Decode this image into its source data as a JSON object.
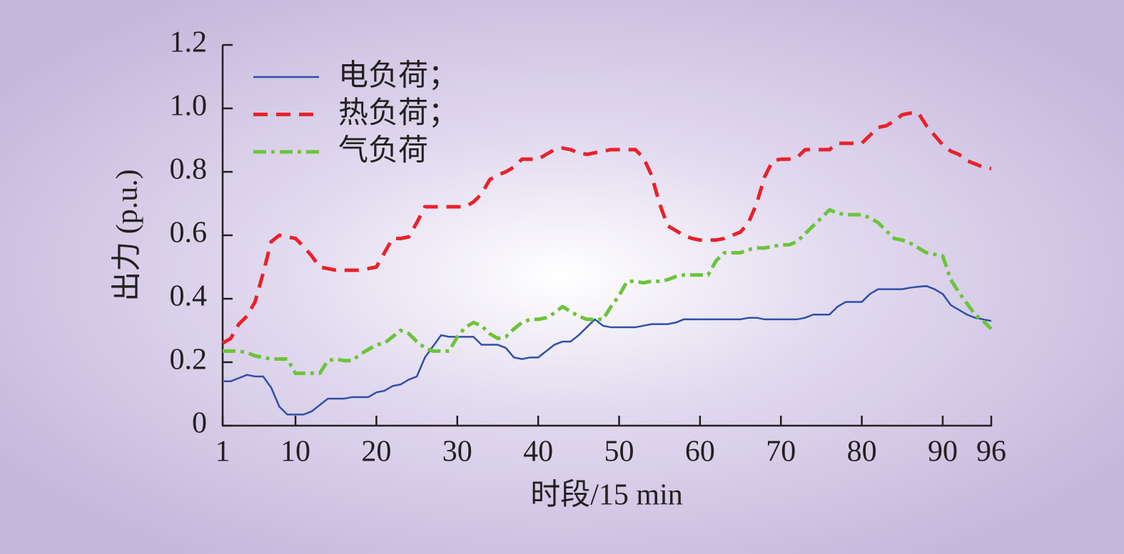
{
  "chart_data": {
    "type": "line",
    "x_label": "时段/15 min",
    "y_label": "出力 (p.u.)",
    "x": [
      1,
      2,
      3,
      4,
      5,
      6,
      7,
      8,
      9,
      10,
      11,
      12,
      13,
      14,
      15,
      16,
      17,
      18,
      19,
      20,
      21,
      22,
      23,
      24,
      25,
      26,
      27,
      28,
      29,
      30,
      31,
      32,
      33,
      34,
      35,
      36,
      37,
      38,
      39,
      40,
      41,
      42,
      43,
      44,
      45,
      46,
      47,
      48,
      49,
      50,
      51,
      52,
      53,
      54,
      55,
      56,
      57,
      58,
      59,
      60,
      61,
      62,
      63,
      64,
      65,
      66,
      67,
      68,
      69,
      70,
      71,
      72,
      73,
      74,
      75,
      76,
      77,
      78,
      79,
      80,
      81,
      82,
      83,
      84,
      85,
      86,
      87,
      88,
      89,
      90,
      91,
      92,
      93,
      94,
      95,
      96
    ],
    "series": [
      {
        "name": "电负荷；",
        "color": "#2f4fa8",
        "dash": "solid",
        "values": [
          0.14,
          0.14,
          0.15,
          0.16,
          0.155,
          0.155,
          0.12,
          0.06,
          0.035,
          0.035,
          0.035,
          0.045,
          0.065,
          0.085,
          0.085,
          0.085,
          0.09,
          0.09,
          0.09,
          0.105,
          0.11,
          0.125,
          0.13,
          0.145,
          0.155,
          0.215,
          0.25,
          0.285,
          0.28,
          0.28,
          0.28,
          0.28,
          0.255,
          0.255,
          0.255,
          0.245,
          0.215,
          0.21,
          0.215,
          0.215,
          0.235,
          0.255,
          0.265,
          0.265,
          0.285,
          0.31,
          0.335,
          0.315,
          0.31,
          0.31,
          0.31,
          0.31,
          0.315,
          0.32,
          0.32,
          0.32,
          0.325,
          0.335,
          0.335,
          0.335,
          0.335,
          0.335,
          0.335,
          0.335,
          0.335,
          0.34,
          0.34,
          0.335,
          0.335,
          0.335,
          0.335,
          0.335,
          0.34,
          0.35,
          0.35,
          0.35,
          0.375,
          0.39,
          0.39,
          0.39,
          0.415,
          0.43,
          0.43,
          0.43,
          0.43,
          0.435,
          0.438,
          0.44,
          0.43,
          0.415,
          0.38,
          0.365,
          0.35,
          0.34,
          0.335,
          0.33
        ]
      },
      {
        "name": "热负荷；",
        "color": "#e8222b",
        "dash": "dashed",
        "values": [
          0.26,
          0.275,
          0.32,
          0.345,
          0.39,
          0.48,
          0.58,
          0.6,
          0.595,
          0.59,
          0.565,
          0.535,
          0.5,
          0.495,
          0.49,
          0.49,
          0.49,
          0.49,
          0.495,
          0.5,
          0.545,
          0.59,
          0.59,
          0.595,
          0.64,
          0.69,
          0.69,
          0.69,
          0.69,
          0.69,
          0.69,
          0.705,
          0.73,
          0.775,
          0.79,
          0.8,
          0.815,
          0.84,
          0.84,
          0.84,
          0.855,
          0.87,
          0.875,
          0.87,
          0.86,
          0.855,
          0.86,
          0.865,
          0.87,
          0.87,
          0.87,
          0.87,
          0.845,
          0.79,
          0.7,
          0.63,
          0.615,
          0.6,
          0.59,
          0.585,
          0.585,
          0.585,
          0.59,
          0.6,
          0.61,
          0.64,
          0.7,
          0.785,
          0.835,
          0.84,
          0.84,
          0.845,
          0.87,
          0.87,
          0.87,
          0.87,
          0.89,
          0.89,
          0.89,
          0.89,
          0.915,
          0.94,
          0.945,
          0.96,
          0.98,
          0.985,
          0.985,
          0.945,
          0.915,
          0.885,
          0.865,
          0.855,
          0.835,
          0.825,
          0.815,
          0.81
        ]
      },
      {
        "name": "气负荷",
        "color": "#6cc43a",
        "dash": "dashdot",
        "values": [
          0.235,
          0.235,
          0.235,
          0.23,
          0.22,
          0.215,
          0.21,
          0.21,
          0.21,
          0.165,
          0.165,
          0.165,
          0.165,
          0.205,
          0.21,
          0.205,
          0.205,
          0.225,
          0.24,
          0.255,
          0.26,
          0.28,
          0.3,
          0.29,
          0.265,
          0.245,
          0.235,
          0.235,
          0.235,
          0.28,
          0.31,
          0.325,
          0.315,
          0.29,
          0.275,
          0.28,
          0.305,
          0.325,
          0.335,
          0.335,
          0.34,
          0.355,
          0.375,
          0.36,
          0.345,
          0.335,
          0.335,
          0.335,
          0.375,
          0.41,
          0.455,
          0.455,
          0.45,
          0.455,
          0.455,
          0.46,
          0.47,
          0.475,
          0.475,
          0.475,
          0.475,
          0.52,
          0.545,
          0.545,
          0.545,
          0.555,
          0.56,
          0.56,
          0.565,
          0.57,
          0.57,
          0.58,
          0.605,
          0.63,
          0.655,
          0.68,
          0.67,
          0.665,
          0.665,
          0.665,
          0.655,
          0.64,
          0.615,
          0.59,
          0.585,
          0.575,
          0.56,
          0.545,
          0.54,
          0.535,
          0.46,
          0.42,
          0.385,
          0.35,
          0.33,
          0.305
        ]
      }
    ],
    "xlim": [
      1,
      96
    ],
    "xticks": [
      1,
      10,
      20,
      30,
      40,
      50,
      60,
      70,
      80,
      90,
      96
    ],
    "ylim": [
      0,
      1.2
    ],
    "yticks": [
      0,
      0.2,
      0.4,
      0.6,
      0.8,
      {
        "value": 1,
        "label": "1.0"
      },
      1.2
    ],
    "legend": "upper left"
  }
}
